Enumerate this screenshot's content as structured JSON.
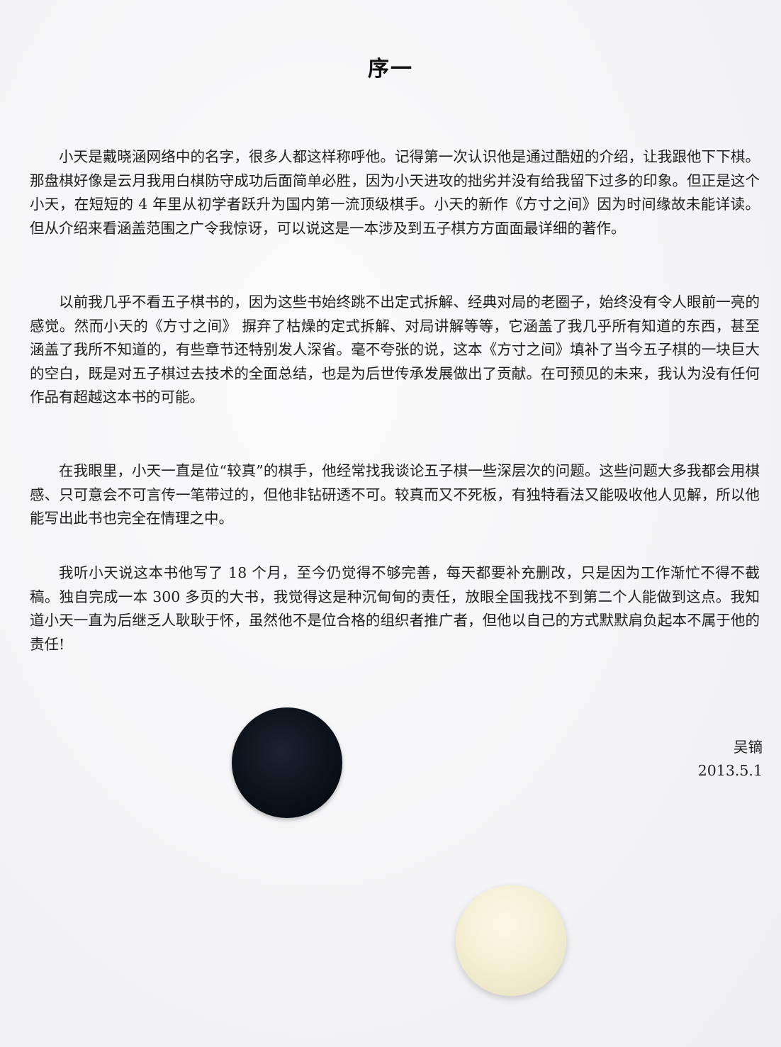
{
  "title": "序一",
  "paragraphs": [
    "小天是戴晓涵网络中的名字，很多人都这样称呼他。记得第一次认识他是通过酷妞的介绍，让我跟他下下棋。那盘棋好像是云月我用白棋防守成功后面简单必胜，因为小天进攻的拙劣并没有给我留下过多的印象。但正是这个小天，在短短的 4 年里从初学者跃升为国内第一流顶级棋手。小天的新作《方寸之间》因为时间缘故未能详读。但从介绍来看涵盖范围之广令我惊讶，可以说这是一本涉及到五子棋方方面面最详细的著作。",
    "以前我几乎不看五子棋书的，因为这些书始终跳不出定式拆解、经典对局的老圈子，始终没有令人眼前一亮的感觉。然而小天的《方寸之间》 摒弃了枯燥的定式拆解、对局讲解等等，它涵盖了我几乎所有知道的东西，甚至涵盖了我所不知道的，有些章节还特别发人深省。毫不夸张的说，这本《方寸之间》填补了当今五子棋的一块巨大的空白，既是对五子棋过去技术的全面总结，也是为后世传承发展做出了贡献。在可预见的未来，我认为没有任何作品有超越这本书的可能。",
    "在我眼里，小天一直是位“较真”的棋手，他经常找我谈论五子棋一些深层次的问题。这些问题大多我都会用棋感、只可意会不可言传一笔带过的，但他非钻研透不可。较真而又不死板，有独特看法又能吸收他人见解，所以他能写出此书也完全在情理之中。",
    "我听小天说这本书他写了 18 个月，至今仍觉得不够完善，每天都要补充删改，只是因为工作渐忙不得不截稿。独自完成一本 300 多页的大书，我觉得这是种沉甸甸的责任，放眼全国我找不到第二个人能做到这点。我知道小天一直为后继乏人耿耿于怀，虽然他不是位合格的组织者推广者，但他以自己的方式默默肩负起本不属于他的责任!"
  ],
  "signature": {
    "author": "吴镝",
    "date": "2013.5.1"
  }
}
